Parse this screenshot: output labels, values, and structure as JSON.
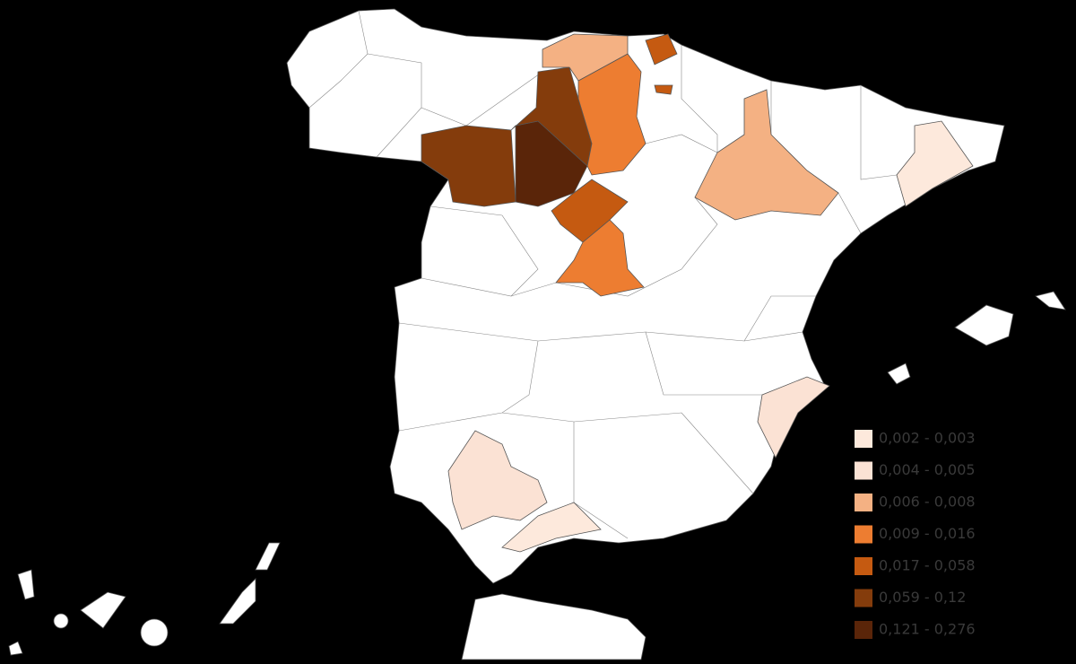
{
  "legend": {
    "items": [
      {
        "label": "0,002 - 0,003",
        "color": "#fde9dc"
      },
      {
        "label": "0,004 - 0,005",
        "color": "#fbe2d4"
      },
      {
        "label": "0,006 - 0,008",
        "color": "#f4b183"
      },
      {
        "label": "0,009 - 0,016",
        "color": "#ed7d31"
      },
      {
        "label": "0,017 - 0,058",
        "color": "#c55a11"
      },
      {
        "label": "0,059 - 0,12",
        "color": "#843c0c"
      },
      {
        "label": "0,121 - 0,276",
        "color": "#5a2509"
      }
    ]
  }
}
